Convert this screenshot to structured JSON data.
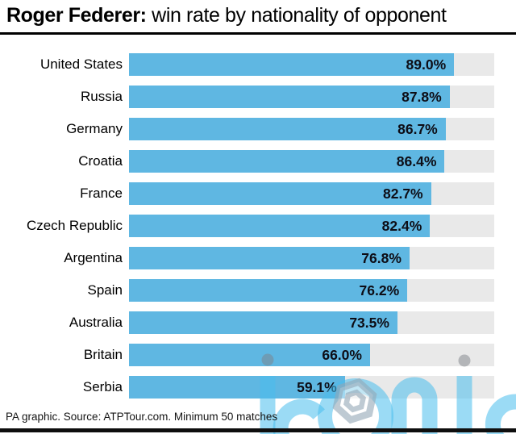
{
  "title": {
    "bold": "Roger Federer:",
    "rest": " win rate by nationality of opponent"
  },
  "footer": "PA graphic. Source: ATPTour.com. Minimum 50 matches",
  "watermark_text": "iconic",
  "colors": {
    "bar": "#5fb7e2",
    "track": "#e9e9e9",
    "title_text": "#000000",
    "value_text": "#0d0d16",
    "watermark_blue": "#49beec",
    "watermark_gray": "#7d8287",
    "rule": "#0e0e0e"
  },
  "chart_data": {
    "type": "bar",
    "orientation": "horizontal",
    "title": "Roger Federer: win rate by nationality of opponent",
    "xlabel": "",
    "ylabel": "",
    "xlim": [
      0,
      100
    ],
    "grid": false,
    "legend": false,
    "categories": [
      "United States",
      "Russia",
      "Germany",
      "Croatia",
      "France",
      "Czech Republic",
      "Argentina",
      "Spain",
      "Australia",
      "Britain",
      "Serbia"
    ],
    "values": [
      89.0,
      87.8,
      86.7,
      86.4,
      82.7,
      82.4,
      76.8,
      76.2,
      73.5,
      66.0,
      59.1
    ],
    "value_labels": [
      "89.0%",
      "87.8%",
      "86.7%",
      "86.4%",
      "82.7%",
      "82.4%",
      "76.8%",
      "76.2%",
      "73.5%",
      "66.0%",
      "59.1%"
    ]
  }
}
